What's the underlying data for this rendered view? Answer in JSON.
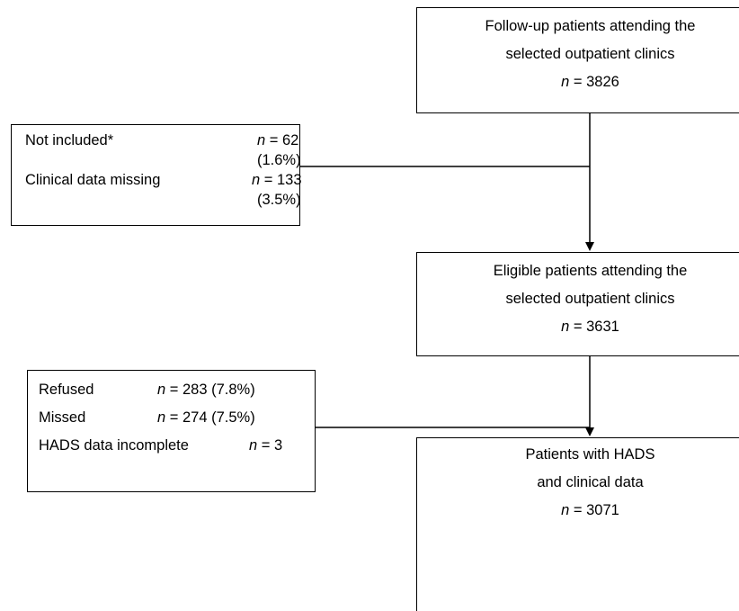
{
  "flow": {
    "box1": {
      "line1": "Follow-up patients attending the",
      "line2": "selected outpatient clinics",
      "n_symbol": "n",
      "n_value": " = 3826"
    },
    "box2": {
      "line1": "Eligible patients attending the",
      "line2": "selected outpatient clinics",
      "n_symbol": "n",
      "n_value": " = 3631"
    },
    "box3": {
      "line1": "Patients with HADS",
      "line2": "and clinical data",
      "n_symbol": "n",
      "n_value": " = 3071"
    }
  },
  "exclusions1": {
    "rows": [
      {
        "label": "Not included*",
        "n_symbol": "n",
        "n_value": " = 62",
        "pct": "(1.6%)"
      },
      {
        "label": "Clinical data missing",
        "n_symbol": "n",
        "n_value": " = 133",
        "pct": "(3.5%)"
      }
    ]
  },
  "exclusions2": {
    "rows": [
      {
        "label": "Refused",
        "n_symbol": "n",
        "n_value": " = 283 (7.8%)"
      },
      {
        "label": "Missed",
        "n_symbol": "n",
        "n_value": " = 274 (7.5%)"
      },
      {
        "label": "HADS data incomplete",
        "n_symbol": "n",
        "n_value": " = 3"
      }
    ]
  }
}
